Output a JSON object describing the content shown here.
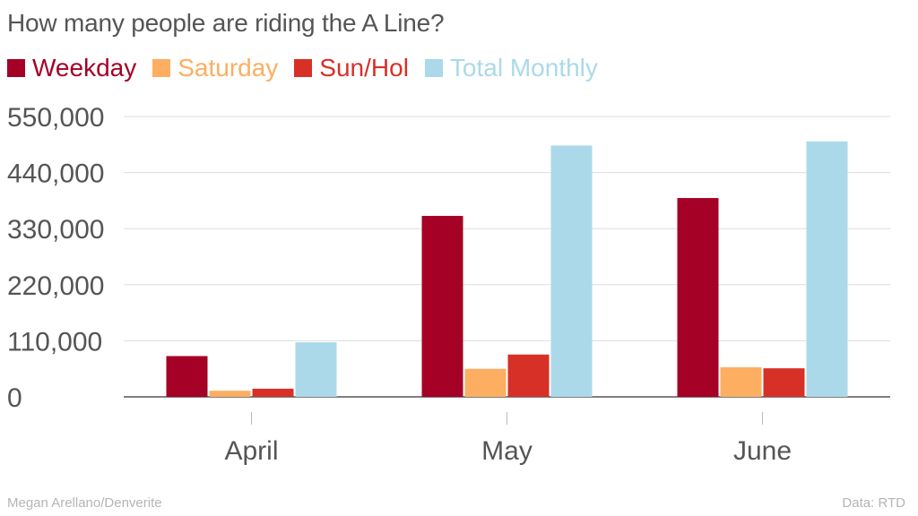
{
  "chart_data": {
    "type": "bar",
    "title": "How many people are riding the A Line?",
    "categories": [
      "April",
      "May",
      "June"
    ],
    "series": [
      {
        "name": "Weekday",
        "color": "#a50026",
        "values": [
          80000,
          355000,
          390000
        ]
      },
      {
        "name": "Saturday",
        "color": "#fdae61",
        "values": [
          12000,
          55000,
          58000
        ]
      },
      {
        "name": "Sun/Hol",
        "color": "#d73027",
        "values": [
          16000,
          83000,
          56000
        ]
      },
      {
        "name": "Total Monthly",
        "color": "#abd9e9",
        "values": [
          107000,
          493000,
          501000
        ]
      }
    ],
    "ylim": [
      0,
      550000
    ],
    "yticks": [
      "0",
      "110,000",
      "220,000",
      "330,000",
      "440,000",
      "550,000"
    ],
    "ytick_values": [
      0,
      110000,
      220000,
      330000,
      440000,
      550000
    ],
    "xlabel": "",
    "ylabel": "",
    "grid": true,
    "legend_position": "top-left"
  },
  "footer": {
    "credit": "Megan Arellano/Denverite",
    "source": "Data: RTD"
  }
}
